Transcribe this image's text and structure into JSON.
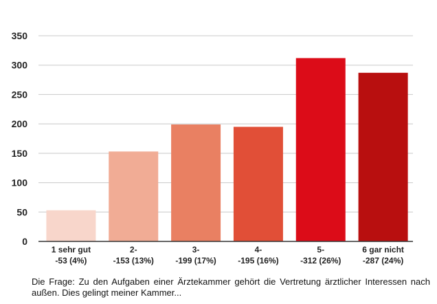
{
  "chart_data": {
    "type": "bar",
    "categories": [
      {
        "line1": "1 sehr gut",
        "line2": "-53 (4%)"
      },
      {
        "line1": "2-",
        "line2": "-153 (13%)"
      },
      {
        "line1": "3-",
        "line2": "-199 (17%)"
      },
      {
        "line1": "4-",
        "line2": "-195 (16%)"
      },
      {
        "line1": "5-",
        "line2": "-312 (26%)"
      },
      {
        "line1": "6 gar nicht",
        "line2": "-287 (24%)"
      }
    ],
    "values": [
      53,
      153,
      199,
      195,
      312,
      287
    ],
    "colors": [
      "#f8d6cb",
      "#f1ac95",
      "#e98062",
      "#e14f37",
      "#dc0c18",
      "#b80f0f"
    ],
    "ylim": [
      0,
      350
    ],
    "yticks": [
      0,
      50,
      100,
      150,
      200,
      250,
      300,
      350
    ],
    "grid": true,
    "gridColor": "#c8c8c8",
    "title": "",
    "xlabel": "",
    "ylabel": ""
  },
  "caption": "Die Frage: Zu den Aufgaben einer Ärztekammer gehört die Vertretung ärztlicher Interessen nach außen. Dies gelingt meiner Kammer..."
}
